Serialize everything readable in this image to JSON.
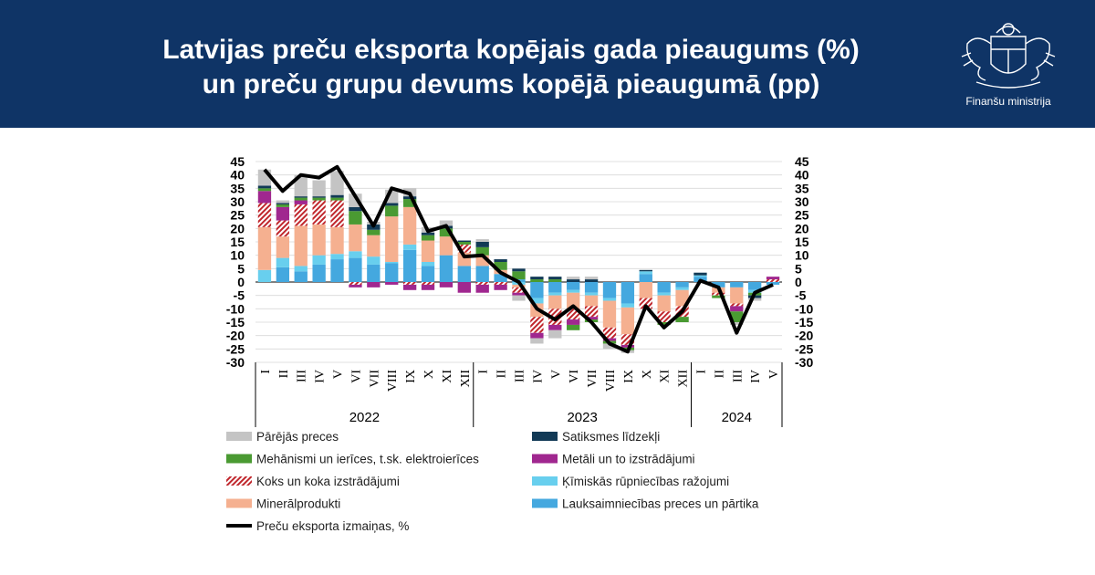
{
  "header": {
    "title_line1": "Latvijas preču eksporta kopējais gada pieaugums (%)",
    "title_line2": "un preču grupu devums kopējā pieaugumā (pp)",
    "logo_text": "Finanšu ministrija",
    "background": "#0f3466"
  },
  "chart_data": {
    "type": "bar",
    "stacked": true,
    "categories": [
      "I",
      "II",
      "III",
      "IV",
      "V",
      "VI",
      "VII",
      "VIII",
      "IX",
      "X",
      "XI",
      "XII",
      "I",
      "II",
      "III",
      "IV",
      "V",
      "VI",
      "VII",
      "VIII",
      "IX",
      "X",
      "XI",
      "XII",
      "I",
      "II",
      "III",
      "IV",
      "V"
    ],
    "year_groups": [
      {
        "label": "2022",
        "count": 12
      },
      {
        "label": "2023",
        "count": 12
      },
      {
        "label": "2024",
        "count": 5
      }
    ],
    "ylim": [
      -30,
      45
    ],
    "yticks": [
      "45",
      "40",
      "35",
      "30",
      "25",
      "20",
      "15",
      "10",
      "5",
      "0",
      "-5",
      "-10",
      "-15",
      "-20",
      "-25",
      "-30"
    ],
    "ytick_values": [
      45,
      40,
      35,
      30,
      25,
      20,
      15,
      10,
      5,
      0,
      -5,
      -10,
      -15,
      -20,
      -25,
      -30
    ],
    "grid": true,
    "series": [
      {
        "name": "Lauksaimniecības preces un pārtika",
        "color": "#44a8df",
        "values": [
          0,
          5.5,
          4,
          6.5,
          8.5,
          9,
          6.5,
          7,
          12,
          6,
          10,
          6,
          6,
          3,
          1,
          -6,
          -4,
          -3,
          -4,
          -6,
          -8,
          3,
          -4,
          -2,
          2,
          -2,
          -2,
          -3,
          -1
        ]
      },
      {
        "name": "Ķīmiskās rūpniecības ražojumi",
        "color": "#68cfee",
        "values": [
          4.5,
          3.5,
          2,
          3.5,
          2,
          2.5,
          3,
          0.5,
          2,
          1.5,
          0,
          0,
          0,
          0,
          -1,
          -2,
          -1,
          -1,
          -1,
          -1,
          -1.5,
          1,
          -1,
          -1,
          0.5,
          0,
          0,
          -1,
          0
        ]
      },
      {
        "name": "Minerālprodukti",
        "color": "#f5b090",
        "values": [
          16,
          8,
          15,
          11.5,
          10,
          10,
          8,
          17,
          14,
          8,
          7,
          5,
          4,
          1.5,
          -1,
          -5,
          -5,
          -6,
          -4,
          -10,
          -10,
          -6,
          -6,
          -6,
          0,
          -2,
          -6,
          0,
          0
        ]
      },
      {
        "name": "Koks un koka izstrādājumi",
        "color": "#c0272d",
        "pattern": true,
        "values": [
          9,
          6,
          8,
          9,
          10,
          -1,
          0,
          0,
          -1,
          -1,
          0,
          3,
          -1,
          -1,
          -2,
          -6,
          -6,
          -4,
          -4,
          -4,
          -4,
          -4,
          -4,
          -4,
          0,
          -1,
          -1,
          0,
          1
        ]
      },
      {
        "name": "Metāli un to izstrādājumi",
        "color": "#a0278f",
        "values": [
          4.5,
          5,
          1.5,
          0,
          0,
          -1,
          -2,
          -1,
          -2,
          -2,
          -2,
          -4,
          -3,
          -2,
          -1,
          -2,
          -2,
          -2,
          -1,
          -1,
          -1,
          0,
          0,
          0,
          0,
          0,
          -2,
          0,
          1
        ]
      },
      {
        "name": "Mehānismi un ierīces, t.sk. elektroierīces",
        "color": "#4a9a32",
        "values": [
          1,
          1,
          1,
          1,
          1,
          5,
          2,
          4,
          3,
          2,
          3,
          1,
          3,
          3,
          3,
          1,
          1,
          -2,
          -1,
          -1,
          -1,
          0,
          -1,
          -2,
          0,
          -1,
          -4,
          -1,
          0
        ]
      },
      {
        "name": "Satiksmes līdzekļi",
        "color": "#123a56",
        "values": [
          1,
          0.5,
          0.5,
          0.5,
          1,
          1.5,
          2,
          1,
          1,
          1,
          1,
          0.5,
          2,
          1,
          1,
          1,
          1,
          1,
          1,
          0,
          0,
          0.5,
          0,
          0,
          1,
          0,
          0,
          -1,
          0
        ]
      },
      {
        "name": "Pārējās preces",
        "color": "#c4c4c4",
        "values": [
          6,
          1,
          8,
          6,
          9,
          5,
          1,
          5,
          3,
          2,
          2,
          0,
          1,
          0,
          -2,
          -2,
          -3,
          1,
          1,
          -2,
          -1,
          0,
          0,
          0,
          0,
          0,
          -1,
          -1,
          0
        ]
      }
    ],
    "line": {
      "name": "Preču eksporta izmaiņas, %",
      "color": "#000000",
      "values": [
        42,
        34,
        40,
        39,
        43,
        32,
        21,
        35,
        33,
        19,
        21,
        9.5,
        10,
        3.5,
        0,
        -10,
        -14,
        -9,
        -15,
        -23,
        -26,
        -9,
        -17,
        -11,
        0.5,
        -2,
        -19,
        -4,
        -1
      ]
    }
  }
}
